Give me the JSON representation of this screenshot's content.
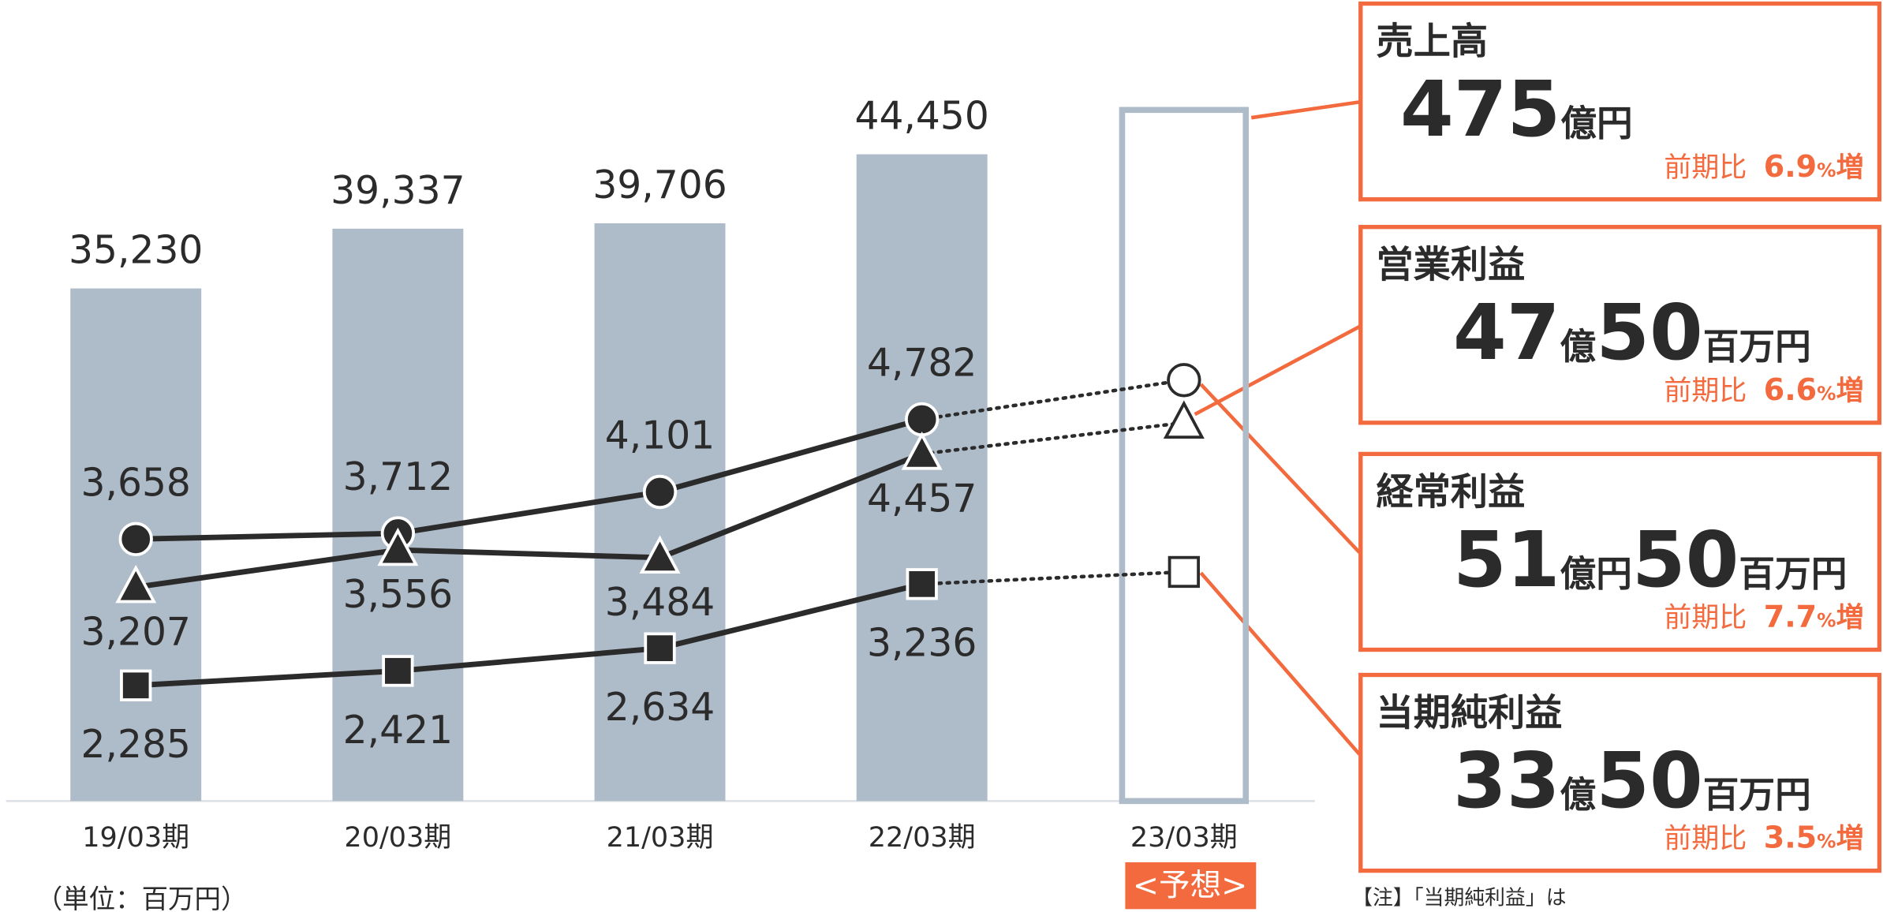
{
  "chart_data": {
    "type": "bar",
    "categories": [
      "19/03期",
      "20/03期",
      "21/03期",
      "22/03期",
      "23/03期"
    ],
    "forecast": [
      false,
      false,
      false,
      false,
      true
    ],
    "values": [
      35230,
      39337,
      39706,
      44450,
      47500
    ],
    "value_labels": [
      "35,230",
      "39,337",
      "39,706",
      "44,450",
      null
    ],
    "color": "#aebbc9",
    "ylim": [
      0,
      52000
    ],
    "y2lim": [
      1200,
      8300
    ],
    "series": [
      {
        "marker": "circle",
        "color": "#2b2b2b",
        "axis": "y2",
        "values": [
          3658,
          3712,
          4101,
          4782,
          5150
        ],
        "value_labels": [
          "3,658",
          "3,712",
          "4,101",
          "4,782",
          null
        ],
        "label_side": "above"
      },
      {
        "marker": "triangle",
        "color": "#2b2b2b",
        "axis": "y2",
        "values": [
          3207,
          3556,
          3484,
          4457,
          4750
        ],
        "value_labels": [
          "3,207",
          "3,556",
          "3,484",
          "4,457",
          null
        ],
        "label_side": "below"
      },
      {
        "marker": "square",
        "color": "#2b2b2b",
        "axis": "y2",
        "values": [
          2285,
          2421,
          2634,
          3236,
          3350
        ],
        "value_labels": [
          "2,285",
          "2,421",
          "2,634",
          "3,236",
          null
        ],
        "label_side": "below"
      }
    ],
    "forecast_label": "<予想>",
    "unit_note": "（単位：百万円）"
  },
  "panels": [
    {
      "title": "売上高",
      "value_parts": [
        "475",
        "億円"
      ],
      "comparison": [
        "前期比",
        "6.9",
        "%",
        "増"
      ]
    },
    {
      "title": "営業利益",
      "value_parts": [
        "47",
        "億",
        "50",
        "百万円"
      ],
      "comparison": [
        "前期比",
        "6.6",
        "%",
        "増"
      ]
    },
    {
      "title": "経常利益",
      "value_parts": [
        "51",
        "億円",
        "50",
        "百万円"
      ],
      "comparison": [
        "前期比",
        "7.7",
        "%",
        "増"
      ]
    },
    {
      "title": "当期純利益",
      "value_parts": [
        "33",
        "億",
        "50",
        "百万円"
      ],
      "comparison": [
        "前期比",
        "3.5",
        "%",
        "増"
      ]
    }
  ],
  "note": "【注】「当期純利益」は"
}
